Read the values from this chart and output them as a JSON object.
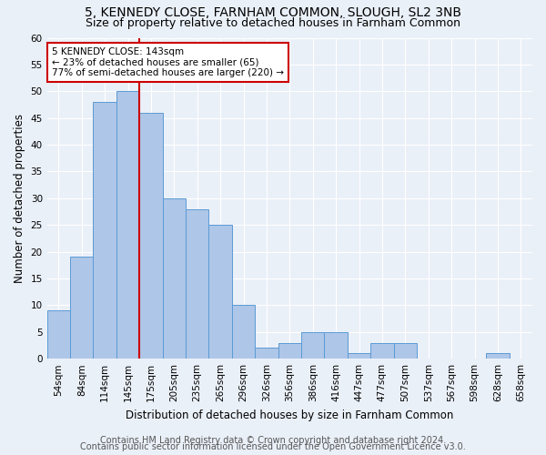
{
  "title1": "5, KENNEDY CLOSE, FARNHAM COMMON, SLOUGH, SL2 3NB",
  "title2": "Size of property relative to detached houses in Farnham Common",
  "xlabel": "Distribution of detached houses by size in Farnham Common",
  "ylabel": "Number of detached properties",
  "footer1": "Contains HM Land Registry data © Crown copyright and database right 2024.",
  "footer2": "Contains public sector information licensed under the Open Government Licence v3.0.",
  "bar_labels": [
    "54sqm",
    "84sqm",
    "114sqm",
    "145sqm",
    "175sqm",
    "205sqm",
    "235sqm",
    "265sqm",
    "296sqm",
    "326sqm",
    "356sqm",
    "386sqm",
    "416sqm",
    "447sqm",
    "477sqm",
    "507sqm",
    "537sqm",
    "567sqm",
    "598sqm",
    "628sqm",
    "658sqm"
  ],
  "bar_values": [
    9,
    19,
    48,
    50,
    46,
    30,
    28,
    25,
    10,
    2,
    3,
    5,
    5,
    1,
    3,
    3,
    0,
    0,
    0,
    1,
    0
  ],
  "bar_color": "#aec6e8",
  "bar_edge_color": "#5b9bd5",
  "vline_x": 3.5,
  "vline_color": "#cc0000",
  "annotation_text": "5 KENNEDY CLOSE: 143sqm\n← 23% of detached houses are smaller (65)\n77% of semi-detached houses are larger (220) →",
  "annotation_box_color": "#ffffff",
  "annotation_box_edgecolor": "#cc0000",
  "ylim": [
    0,
    60
  ],
  "yticks": [
    0,
    5,
    10,
    15,
    20,
    25,
    30,
    35,
    40,
    45,
    50,
    55,
    60
  ],
  "bg_color": "#eaf0f8",
  "grid_color": "#ffffff",
  "title1_fontsize": 10,
  "title2_fontsize": 9,
  "xlabel_fontsize": 8.5,
  "ylabel_fontsize": 8.5,
  "footer_fontsize": 7,
  "tick_fontsize": 7.5,
  "annot_fontsize": 7.5
}
